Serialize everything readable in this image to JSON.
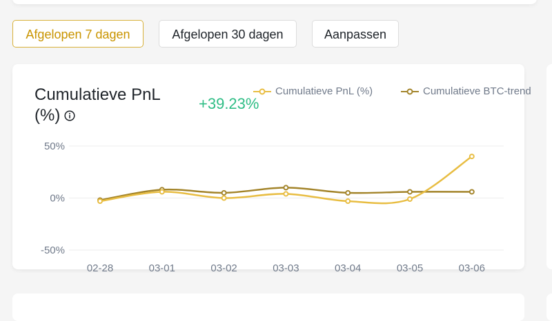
{
  "filters": {
    "last7": "Afgelopen 7 dagen",
    "last30": "Afgelopen 30 dagen",
    "custom": "Aanpassen",
    "active": "last7"
  },
  "chart_header": {
    "title": "Cumulatieve PnL (%)",
    "value": "+39.23%",
    "value_color": "#2ebd85"
  },
  "colors": {
    "pnl": "#e8bd42",
    "btc": "#a3842a",
    "grid": "#ececec",
    "axis_text": "#707a8a"
  },
  "chart_data": {
    "type": "line",
    "categories": [
      "02-28",
      "03-01",
      "03-02",
      "03-03",
      "03-04",
      "03-05",
      "03-06"
    ],
    "ylim": [
      -50,
      50
    ],
    "yticks": [
      50,
      0,
      -50
    ],
    "ytick_labels": [
      "50%",
      "0%",
      "-50%"
    ],
    "grid": true,
    "legend": "top-right",
    "series": [
      {
        "name": "Cumulatieve PnL (%)",
        "values": [
          -3,
          6,
          0,
          4,
          -3,
          -1,
          40
        ]
      },
      {
        "name": "Cumulatieve BTC-trend",
        "values": [
          -2,
          8,
          5,
          10,
          5,
          6,
          6
        ]
      }
    ]
  }
}
